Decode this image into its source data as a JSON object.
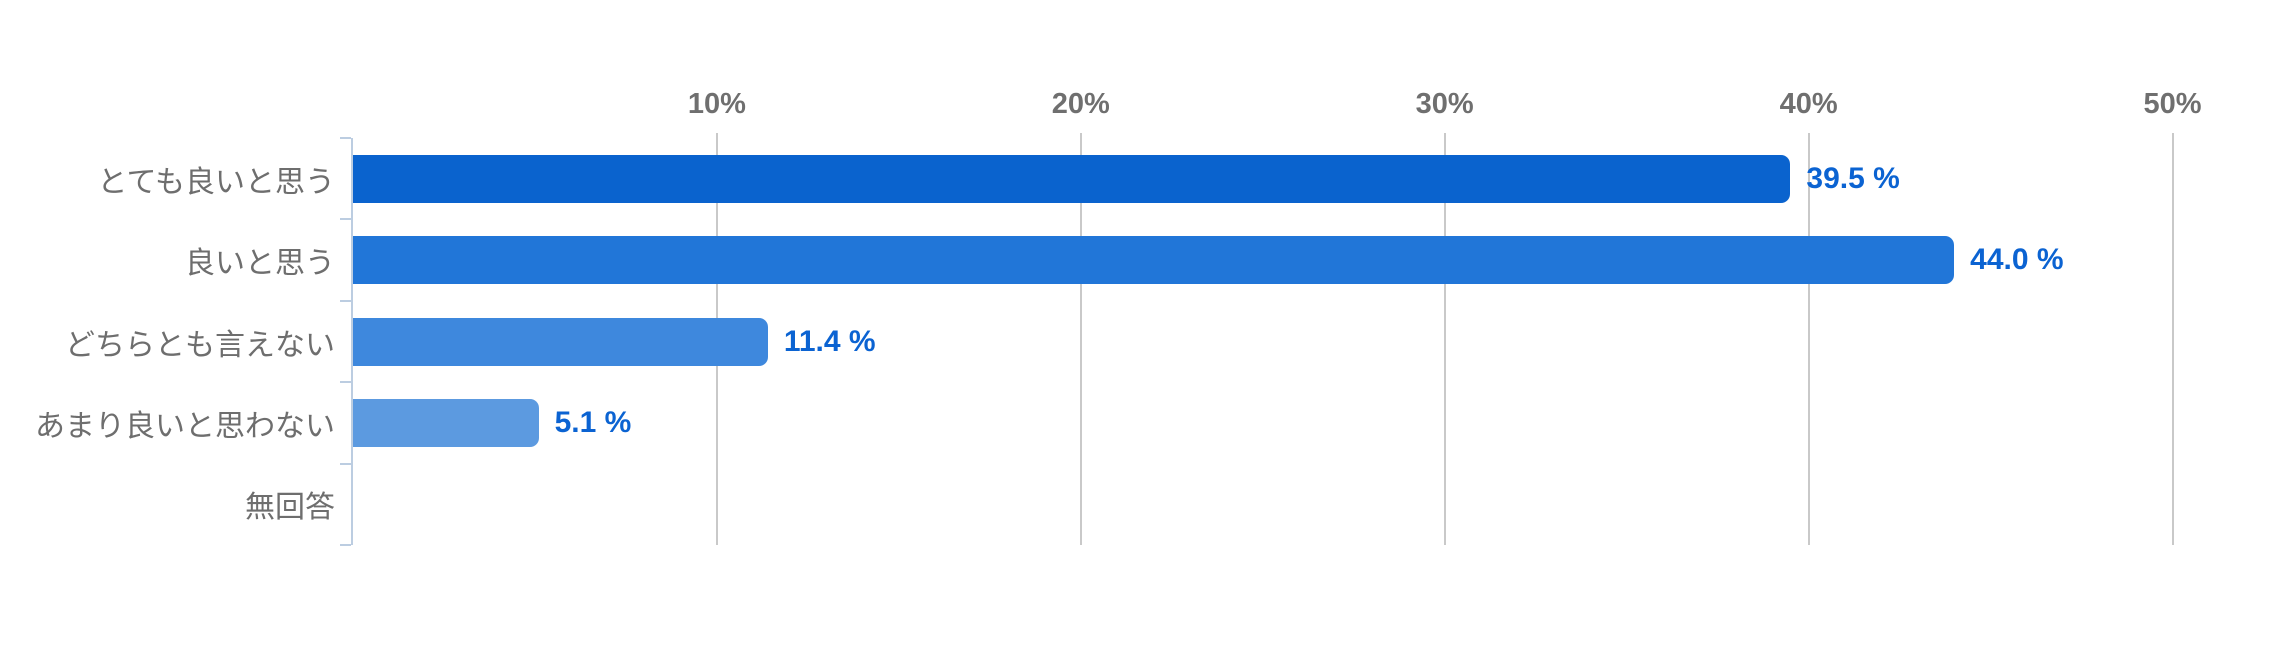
{
  "chart_data": {
    "type": "bar",
    "orientation": "horizontal",
    "title": "",
    "categories": [
      "とても良いと思う",
      "良いと思う",
      "どちらとも言えない",
      "あまり良いと思わない",
      "無回答"
    ],
    "values": [
      39.5,
      44.0,
      11.4,
      5.1,
      0
    ],
    "value_labels": [
      "39.5 %",
      "44.0 %",
      "11.4 %",
      "5.1 %",
      ""
    ],
    "x_tick_labels": [
      "10%",
      "20%",
      "30%",
      "40%",
      "50%"
    ],
    "x_tick_values": [
      10,
      20,
      30,
      40,
      50
    ],
    "xlim": [
      0,
      50
    ],
    "grid": true,
    "legend": false,
    "colors": {
      "bars": [
        "#0a63ce",
        "#2176d8",
        "#3e88dd",
        "#5c9ae0",
        "#5c9ae0"
      ],
      "value_label": "#0b63d2",
      "category_label": "#6e6e6e",
      "tick_label": "#6f6f6f",
      "gridline": "#c9c9c9",
      "axis": "#bccde1",
      "background": "#ffffff"
    }
  }
}
